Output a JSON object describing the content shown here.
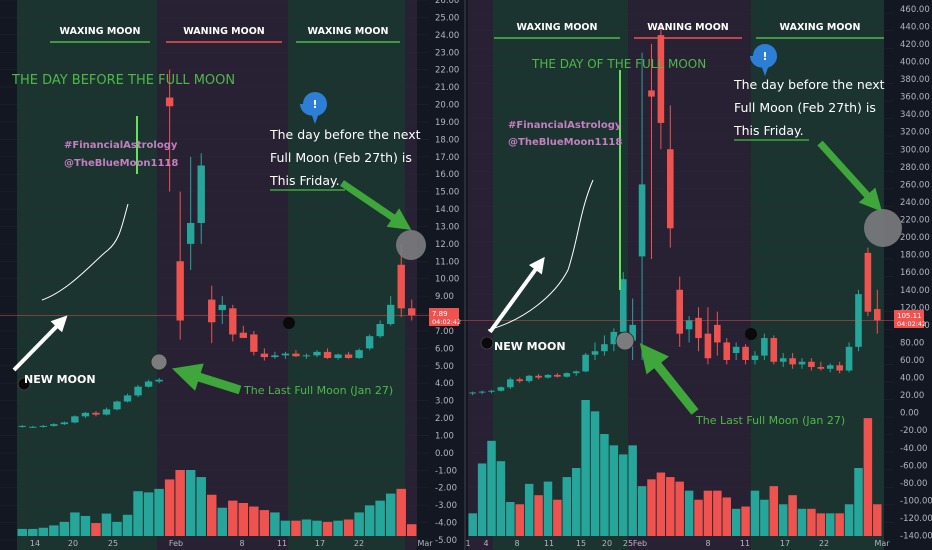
{
  "colors": {
    "background": "#131722",
    "waxing_bg": "#1f3a33",
    "waning_bg": "#2b2336",
    "up": "#26a69a",
    "down": "#ef5350",
    "text_light": "#e6e6e6",
    "green_text": "#4fb848",
    "pink_text": "#c37fc0",
    "arrow_green": "#3ea63a",
    "moon_black": "#0a0a0a",
    "moon_grey": "#7c7c7f",
    "bubble_blue": "#2d7fd6",
    "price_tag": "#ef5350"
  },
  "left": {
    "phases": [
      "WAXING MOON",
      "WANING MOON",
      "WAXING MOON"
    ],
    "headline": "THE DAY BEFORE THE FULL MOON",
    "hashtags": [
      "#FinancialAstrology",
      "@TheBlueMoon1118"
    ],
    "note_lines": [
      "The day before the next",
      "Full Moon (Feb 27th) is",
      "This Friday."
    ],
    "new_moon_label": "NEW MOON",
    "last_full_moon_label": "The Last Full Moon (Jan 27)",
    "bubble_icon": "!",
    "price_tag": [
      "7.89",
      "04:02:42"
    ]
  },
  "right": {
    "phases": [
      "WAXING MOON",
      "WANING MOON",
      "WAXING MOON"
    ],
    "headline": "THE DAY OF THE FULL MOON",
    "hashtags": [
      "#FinancialAstrology",
      "@TheBlueMoon1118"
    ],
    "note_lines": [
      "The day before the next",
      "Full Moon (Feb 27th) is",
      "This Friday."
    ],
    "new_moon_label": "NEW MOON",
    "last_full_moon_label": "The Last Full Moon (Jan 27)",
    "bubble_icon": "!",
    "price_tag": [
      "105.11",
      "04:02:42"
    ]
  },
  "chart_data": [
    {
      "type": "candlestick",
      "x_tick_labels": [
        "14",
        "20",
        "25",
        "Feb",
        "8",
        "11",
        "17",
        "22",
        "Mar"
      ],
      "y_tick_labels": [
        "26.00",
        "25.00",
        "24.00",
        "23.00",
        "22.00",
        "21.00",
        "20.00",
        "19.00",
        "18.00",
        "17.00",
        "16.00",
        "15.00",
        "14.00",
        "13.00",
        "12.00",
        "11.00",
        "10.00",
        "9.00",
        "8.00",
        "7.00",
        "6.00",
        "5.00",
        "4.00",
        "3.00",
        "2.00",
        "1.00",
        "0.00",
        "-1.00",
        "-2.00",
        "-3.00",
        "-4.00",
        "-5.00"
      ],
      "ylim": [
        -5,
        26
      ],
      "current_price": 7.89,
      "candles": [
        {
          "o": 1.5,
          "h": 1.6,
          "l": 1.45,
          "c": 1.55
        },
        {
          "o": 1.5,
          "h": 1.55,
          "l": 1.45,
          "c": 1.5
        },
        {
          "o": 1.5,
          "h": 1.6,
          "l": 1.45,
          "c": 1.55
        },
        {
          "o": 1.55,
          "h": 1.7,
          "l": 1.5,
          "c": 1.65
        },
        {
          "o": 1.65,
          "h": 1.8,
          "l": 1.6,
          "c": 1.75
        },
        {
          "o": 1.75,
          "h": 2.15,
          "l": 1.7,
          "c": 2.1
        },
        {
          "o": 2.1,
          "h": 2.35,
          "l": 2.0,
          "c": 2.3
        },
        {
          "o": 2.3,
          "h": 2.4,
          "l": 2.1,
          "c": 2.2
        },
        {
          "o": 2.2,
          "h": 2.6,
          "l": 2.15,
          "c": 2.5
        },
        {
          "o": 2.5,
          "h": 3.0,
          "l": 2.45,
          "c": 2.95
        },
        {
          "o": 2.95,
          "h": 3.4,
          "l": 2.9,
          "c": 3.3
        },
        {
          "o": 3.3,
          "h": 3.9,
          "l": 3.2,
          "c": 3.8
        },
        {
          "o": 3.8,
          "h": 4.2,
          "l": 3.75,
          "c": 4.1
        },
        {
          "o": 4.1,
          "h": 4.3,
          "l": 4.0,
          "c": 4.2
        },
        {
          "o": 20.4,
          "h": 22.0,
          "l": 15.0,
          "c": 19.9
        },
        {
          "o": 11.0,
          "h": 15.0,
          "l": 6.5,
          "c": 7.6
        },
        {
          "o": 12.0,
          "h": 17.0,
          "l": 10.5,
          "c": 13.2
        },
        {
          "o": 13.2,
          "h": 17.2,
          "l": 12.0,
          "c": 16.5
        },
        {
          "o": 8.8,
          "h": 9.6,
          "l": 6.3,
          "c": 7.5
        },
        {
          "o": 8.2,
          "h": 9.0,
          "l": 7.4,
          "c": 8.5
        },
        {
          "o": 8.3,
          "h": 8.5,
          "l": 6.4,
          "c": 6.8
        },
        {
          "o": 6.9,
          "h": 7.3,
          "l": 6.6,
          "c": 6.6
        },
        {
          "o": 6.8,
          "h": 7.0,
          "l": 5.6,
          "c": 5.8
        },
        {
          "o": 5.7,
          "h": 6.0,
          "l": 5.3,
          "c": 5.5
        },
        {
          "o": 5.5,
          "h": 5.8,
          "l": 5.4,
          "c": 5.6
        },
        {
          "o": 5.6,
          "h": 5.8,
          "l": 5.4,
          "c": 5.7
        },
        {
          "o": 5.7,
          "h": 5.9,
          "l": 5.5,
          "c": 5.55
        },
        {
          "o": 5.55,
          "h": 5.7,
          "l": 5.4,
          "c": 5.6
        },
        {
          "o": 5.6,
          "h": 5.9,
          "l": 5.5,
          "c": 5.8
        },
        {
          "o": 5.8,
          "h": 6.0,
          "l": 5.4,
          "c": 5.45
        },
        {
          "o": 5.45,
          "h": 5.7,
          "l": 5.35,
          "c": 5.65
        },
        {
          "o": 5.65,
          "h": 5.8,
          "l": 5.4,
          "c": 5.45
        },
        {
          "o": 5.45,
          "h": 6.0,
          "l": 5.4,
          "c": 5.9
        },
        {
          "o": 6.0,
          "h": 6.8,
          "l": 5.9,
          "c": 6.7
        },
        {
          "o": 6.7,
          "h": 7.6,
          "l": 6.6,
          "c": 7.4
        },
        {
          "o": 7.4,
          "h": 9.0,
          "l": 7.3,
          "c": 8.5
        },
        {
          "o": 10.8,
          "h": 12.0,
          "l": 7.8,
          "c": 8.3
        },
        {
          "o": 8.3,
          "h": 8.8,
          "l": 7.6,
          "c": 7.9
        }
      ],
      "volumes": [
        6,
        6,
        7,
        9,
        12,
        20,
        17,
        11,
        19,
        12,
        18,
        38,
        37,
        40,
        48,
        56,
        56,
        50,
        35,
        24,
        30,
        28,
        25,
        22,
        20,
        13,
        13,
        14,
        13,
        12,
        13,
        14,
        20,
        26,
        30,
        36,
        40,
        10
      ]
    },
    {
      "type": "candlestick",
      "x_tick_labels": [
        "1",
        "4",
        "8",
        "11",
        "15",
        "20",
        "25",
        "Feb",
        "8",
        "11",
        "17",
        "22",
        "Mar"
      ],
      "y_tick_labels": [
        "460.00",
        "440.00",
        "420.00",
        "400.00",
        "380.00",
        "360.00",
        "340.00",
        "320.00",
        "300.00",
        "280.00",
        "260.00",
        "240.00",
        "220.00",
        "200.00",
        "180.00",
        "160.00",
        "140.00",
        "120.00",
        "100.00",
        "80.00",
        "60.00",
        "40.00",
        "20.00",
        "0.00",
        "-20.00",
        "-40.00",
        "-60.00",
        "-80.00",
        "-100.00",
        "-120.00",
        "-140.00"
      ],
      "ylim": [
        -145,
        470
      ],
      "current_price": 105.11,
      "candles": [
        {
          "o": 22,
          "h": 24,
          "l": 20,
          "c": 23
        },
        {
          "o": 23,
          "h": 25,
          "l": 21,
          "c": 24
        },
        {
          "o": 24,
          "h": 26,
          "l": 22,
          "c": 25
        },
        {
          "o": 25,
          "h": 30,
          "l": 24,
          "c": 29
        },
        {
          "o": 29,
          "h": 40,
          "l": 27,
          "c": 38
        },
        {
          "o": 38,
          "h": 40,
          "l": 34,
          "c": 36
        },
        {
          "o": 36,
          "h": 43,
          "l": 34,
          "c": 42
        },
        {
          "o": 42,
          "h": 44,
          "l": 38,
          "c": 40
        },
        {
          "o": 40,
          "h": 44,
          "l": 39,
          "c": 43
        },
        {
          "o": 43,
          "h": 45,
          "l": 40,
          "c": 41
        },
        {
          "o": 41,
          "h": 46,
          "l": 40,
          "c": 45
        },
        {
          "o": 45,
          "h": 48,
          "l": 42,
          "c": 47
        },
        {
          "o": 47,
          "h": 68,
          "l": 46,
          "c": 66
        },
        {
          "o": 66,
          "h": 80,
          "l": 60,
          "c": 70
        },
        {
          "o": 70,
          "h": 88,
          "l": 65,
          "c": 78
        },
        {
          "o": 78,
          "h": 96,
          "l": 70,
          "c": 92
        },
        {
          "o": 92,
          "h": 160,
          "l": 82,
          "c": 152
        },
        {
          "o": 82,
          "h": 130,
          "l": 60,
          "c": 100
        },
        {
          "o": 178,
          "h": 410,
          "l": 60,
          "c": 260
        },
        {
          "o": 367,
          "h": 420,
          "l": 175,
          "c": 360
        },
        {
          "o": 430,
          "h": 440,
          "l": 300,
          "c": 330
        },
        {
          "o": 300,
          "h": 350,
          "l": 188,
          "c": 210
        },
        {
          "o": 140,
          "h": 155,
          "l": 75,
          "c": 90
        },
        {
          "o": 95,
          "h": 110,
          "l": 80,
          "c": 105
        },
        {
          "o": 108,
          "h": 120,
          "l": 70,
          "c": 85
        },
        {
          "o": 90,
          "h": 120,
          "l": 55,
          "c": 62
        },
        {
          "o": 100,
          "h": 115,
          "l": 65,
          "c": 80
        },
        {
          "o": 80,
          "h": 85,
          "l": 55,
          "c": 60
        },
        {
          "o": 68,
          "h": 80,
          "l": 60,
          "c": 75
        },
        {
          "o": 75,
          "h": 78,
          "l": 55,
          "c": 60
        },
        {
          "o": 60,
          "h": 70,
          "l": 55,
          "c": 65
        },
        {
          "o": 65,
          "h": 90,
          "l": 60,
          "c": 85
        },
        {
          "o": 85,
          "h": 88,
          "l": 55,
          "c": 58
        },
        {
          "o": 58,
          "h": 68,
          "l": 52,
          "c": 62
        },
        {
          "o": 62,
          "h": 68,
          "l": 50,
          "c": 55
        },
        {
          "o": 55,
          "h": 62,
          "l": 50,
          "c": 58
        },
        {
          "o": 58,
          "h": 62,
          "l": 48,
          "c": 52
        },
        {
          "o": 52,
          "h": 58,
          "l": 48,
          "c": 50
        },
        {
          "o": 50,
          "h": 56,
          "l": 46,
          "c": 54
        },
        {
          "o": 54,
          "h": 58,
          "l": 45,
          "c": 48
        },
        {
          "o": 48,
          "h": 80,
          "l": 46,
          "c": 75
        },
        {
          "o": 75,
          "h": 140,
          "l": 70,
          "c": 135
        },
        {
          "o": 182,
          "h": 188,
          "l": 110,
          "c": 115
        },
        {
          "o": 118,
          "h": 140,
          "l": 90,
          "c": 105
        }
      ],
      "volumes": [
        10,
        32,
        42,
        33,
        15,
        14,
        23,
        18,
        24,
        16,
        26,
        30,
        60,
        55,
        45,
        40,
        36,
        40,
        22,
        25,
        28,
        26,
        24,
        20,
        16,
        20,
        20,
        17,
        12,
        13,
        20,
        16,
        22,
        14,
        18,
        12,
        12,
        10,
        10,
        10,
        14,
        30,
        52,
        14
      ]
    }
  ]
}
